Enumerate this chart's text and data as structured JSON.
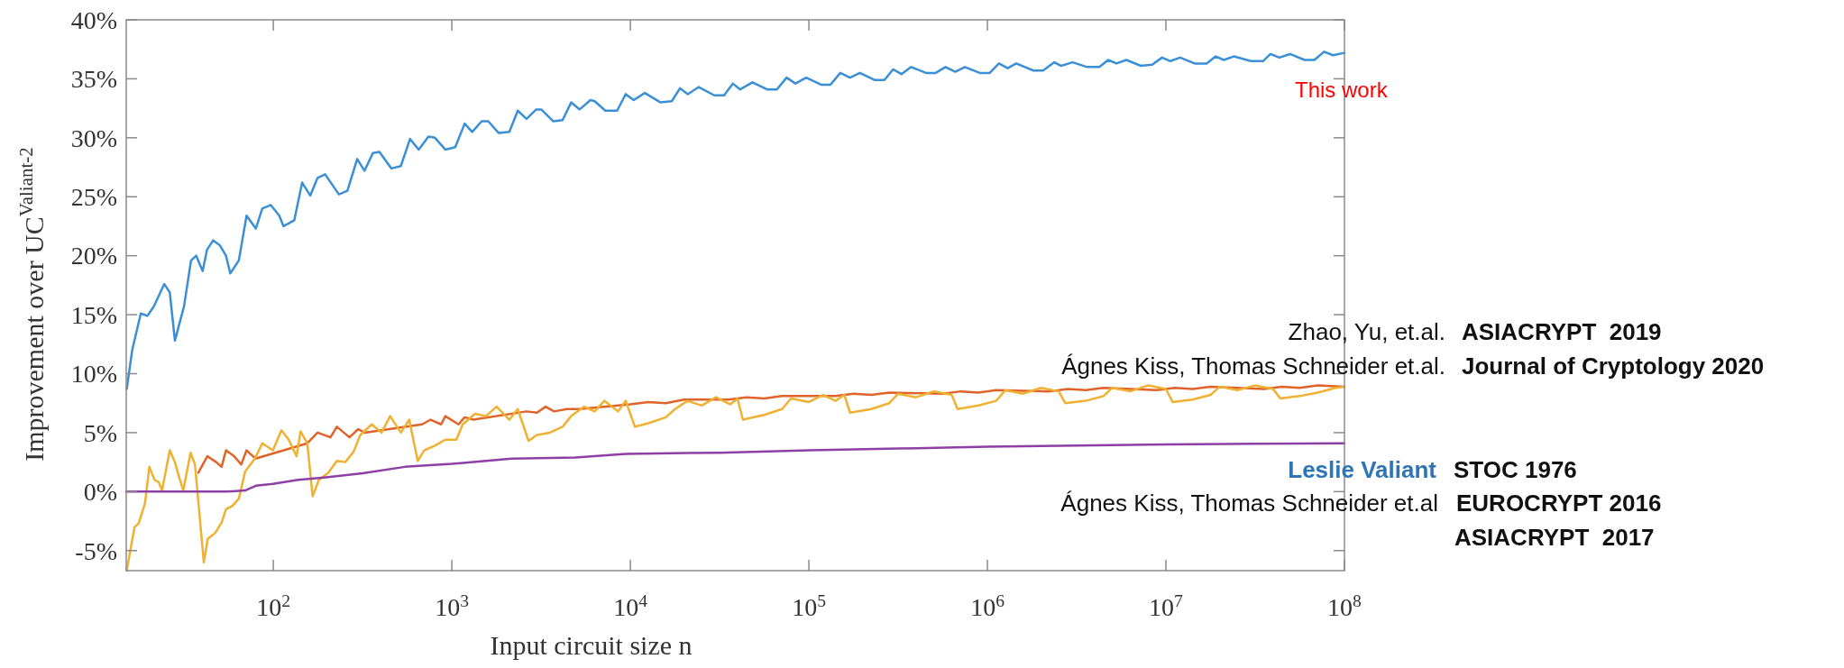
{
  "chart_data": {
    "type": "line",
    "xlabel": "Input circuit size n",
    "ylabel": "Improvement over UC$^{Valiant-2}$",
    "log": "x",
    "xlim": [
      15,
      100000000
    ],
    "ylim": [
      -6.7,
      40
    ],
    "xticks": [
      {
        "value": 100,
        "label": "10$^{2}$"
      },
      {
        "value": 1000,
        "label": "10$^{3}$"
      },
      {
        "value": 10000,
        "label": "10$^{4}$"
      },
      {
        "value": 100000,
        "label": "10$^{5}$"
      },
      {
        "value": 1000000,
        "label": "10$^{6}$"
      },
      {
        "value": 10000000,
        "label": "10$^{7}$"
      },
      {
        "value": 100000000,
        "label": "10$^{8}$"
      }
    ],
    "yticks": [
      {
        "value": -5,
        "label": "-5%"
      },
      {
        "value": 0,
        "label": "0%"
      },
      {
        "value": 5,
        "label": "5%"
      },
      {
        "value": 10,
        "label": "10%"
      },
      {
        "value": 15,
        "label": "15%"
      },
      {
        "value": 20,
        "label": "20%"
      },
      {
        "value": 25,
        "label": "25%"
      },
      {
        "value": 30,
        "label": "30%"
      },
      {
        "value": 35,
        "label": "35%"
      },
      {
        "value": 40,
        "label": "40%"
      }
    ],
    "series": [
      {
        "color": "#3a8fd6",
        "x": [
          15.1,
          16.2,
          18.1,
          19.7,
          21.4,
          24.5,
          26.3,
          28.1,
          31.6,
          34.6,
          37,
          40.2,
          42.5,
          46,
          50.1,
          54.3,
          57.4,
          64.1,
          70.8,
          79.8,
          86.7,
          96.8,
          108,
          114,
          131,
          145,
          161,
          177,
          195,
          233,
          260,
          295,
          324,
          361,
          393,
          458,
          518,
          583,
          652,
          740,
          804,
          920,
          1045,
          1180,
          1300,
          1470,
          1600,
          1830,
          2100,
          2340,
          2620,
          2970,
          3170,
          3700,
          4170,
          4660,
          5200,
          5970,
          6310,
          7240,
          8430,
          9420,
          10450,
          12050,
          14760,
          17060,
          18970,
          20990,
          24150,
          29510,
          33500,
          37500,
          41200,
          48300,
          58300,
          66200,
          75000,
          84100,
          96600,
          117000,
          132000,
          150000,
          170000,
          193000,
          233000,
          265000,
          296000,
          330000,
          374000,
          453000,
          513000,
          582000,
          661000,
          748000,
          906000,
          1030000,
          1160000,
          1300000,
          1450000,
          1810000,
          2050000,
          2370000,
          2590000,
          3000000,
          3620000,
          4240000,
          4750000,
          5280000,
          6000000,
          7240000,
          8380000,
          9510000,
          10600000,
          12000000,
          14500000,
          16900000,
          19000000,
          21100000,
          24000000,
          29900000,
          35000000,
          38500000,
          43200000,
          49500000,
          59800000,
          67900000,
          76900000,
          86300000,
          100000000
        ],
        "values": [
          8.7,
          12,
          15.1,
          14.9,
          15.7,
          17.6,
          16.9,
          12.8,
          15.7,
          19.6,
          20,
          18.7,
          20.5,
          21.3,
          20.9,
          20,
          18.5,
          19.6,
          23.4,
          22.3,
          24,
          24.3,
          23.4,
          22.5,
          23,
          26.2,
          25.1,
          26.6,
          26.9,
          25.2,
          25.5,
          28.2,
          27.2,
          28.7,
          28.8,
          27.4,
          27.6,
          29.9,
          29,
          30.1,
          30,
          29,
          29.2,
          31.2,
          30.5,
          31.4,
          31.4,
          30.4,
          30.5,
          32.3,
          31.6,
          32.4,
          32.4,
          31.4,
          31.5,
          33,
          32.4,
          33.2,
          33.1,
          32.3,
          32.3,
          33.7,
          33.2,
          33.8,
          33,
          33.1,
          34.2,
          33.7,
          34.3,
          33.6,
          33.6,
          34.6,
          34.1,
          34.7,
          34.1,
          34.1,
          35.1,
          34.6,
          35.1,
          34.5,
          34.5,
          35.5,
          35.1,
          35.5,
          34.9,
          34.9,
          35.8,
          35.4,
          36,
          35.5,
          35.5,
          36,
          35.6,
          36,
          35.5,
          35.5,
          36.3,
          35.9,
          36.3,
          35.7,
          35.7,
          36.4,
          36.1,
          36.4,
          36,
          36,
          36.6,
          36.3,
          36.6,
          36.1,
          36.2,
          36.8,
          36.5,
          36.8,
          36.3,
          36.3,
          36.9,
          36.6,
          36.9,
          36.5,
          36.5,
          37.1,
          36.8,
          37.1,
          36.6,
          36.6,
          37.3,
          37,
          37.2
        ]
      },
      {
        "color": "#e0632a",
        "x": [
          38,
          42.7,
          47.9,
          51.3,
          54.3,
          60.3,
          66.1,
          70.8,
          79.4,
          155,
          177,
          209,
          227,
          267,
          299,
          324,
          681,
          760,
          871,
          920,
          1090,
          1180,
          1320,
          2620,
          3000,
          3350,
          3740,
          4410,
          5200,
          10000,
          12600,
          15800,
          20000,
          35500,
          44700,
          56200,
          70800,
          141000,
          178000,
          224000,
          282000,
          562000,
          708000,
          891000,
          1120000,
          2240000,
          2820000,
          3550000,
          4470000,
          8910000,
          11200000,
          14100000,
          17800000,
          35500000,
          44700000,
          56200000,
          70800000,
          100000000
        ],
        "values": [
          1.6,
          3,
          2.5,
          2.1,
          3.5,
          3,
          2.3,
          3.5,
          2.8,
          4.1,
          5,
          4.6,
          5.5,
          4.6,
          5.3,
          5,
          5.7,
          6.1,
          5.7,
          6.4,
          5.7,
          6.3,
          6.1,
          6.8,
          6.7,
          7.2,
          6.8,
          7,
          7,
          7.4,
          7.6,
          7.5,
          7.8,
          7.8,
          8,
          7.9,
          8.1,
          8.1,
          8.3,
          8.2,
          8.4,
          8.3,
          8.5,
          8.4,
          8.6,
          8.5,
          8.7,
          8.6,
          8.8,
          8.6,
          8.8,
          8.7,
          8.9,
          8.7,
          8.9,
          8.8,
          9,
          8.9
        ]
      },
      {
        "color": "#f0b030",
        "x": [
          15.1,
          15.8,
          16.7,
          17.6,
          19.1,
          20.2,
          21.6,
          22.8,
          23.8,
          26.3,
          28.1,
          29.7,
          31.3,
          34.4,
          36.4,
          40.8,
          42.9,
          47.3,
          51.4,
          54.3,
          59,
          64.1,
          69.5,
          78.9,
          86.7,
          99.5,
          111,
          122,
          135,
          142,
          155,
          166,
          180,
          203,
          227,
          253,
          282,
          307,
          356,
          404,
          451,
          518,
          577,
          644,
          700,
          804,
          920,
          1060,
          1150,
          1350,
          1550,
          1780,
          2100,
          2340,
          2690,
          3000,
          3540,
          4170,
          4660,
          5500,
          6310,
          7150,
          8530,
          9420,
          10600,
          12600,
          15800,
          17800,
          20900,
          25100,
          30200,
          36300,
          39800,
          42700,
          56200,
          70800,
          79400,
          100000,
          120000,
          141000,
          158000,
          170000,
          224000,
          282000,
          316000,
          398000,
          501000,
          631000,
          681000,
          891000,
          1120000,
          1260000,
          1580000,
          2000000,
          2510000,
          2730000,
          3550000,
          4470000,
          5010000,
          6310000,
          7940000,
          10000000,
          10900000,
          14100000,
          17800000,
          20000000,
          25100000,
          31600000,
          39800000,
          43700000,
          56200000,
          70800000,
          89100000,
          100000000
        ],
        "values": [
          -6.7,
          -5,
          -3,
          -2.7,
          -1,
          2.1,
          1,
          0.8,
          0.1,
          3.5,
          2.5,
          1.2,
          0.1,
          3.3,
          2.3,
          -6,
          -4,
          -3.5,
          -2.6,
          -1.5,
          -1.2,
          -0.6,
          1.7,
          2.8,
          4.1,
          3.5,
          5.2,
          4.4,
          3,
          5.1,
          4.1,
          -0.4,
          1,
          1.6,
          2.6,
          2.5,
          3.4,
          4.8,
          5.7,
          5,
          6.4,
          5,
          6.1,
          2.6,
          3.5,
          3.9,
          4.4,
          4.4,
          5.7,
          6.6,
          6.4,
          7.2,
          6.1,
          7,
          4.3,
          4.8,
          5,
          5.5,
          6.4,
          7.2,
          6.8,
          7.7,
          6.8,
          7.7,
          5.5,
          5.8,
          6.3,
          7,
          7.7,
          7.3,
          8,
          7.4,
          7.9,
          6.1,
          6.5,
          7,
          7.9,
          7.6,
          8.2,
          7.7,
          8.2,
          6.7,
          7,
          7.5,
          8.3,
          8,
          8.5,
          8.2,
          7,
          7.3,
          7.7,
          8.6,
          8.3,
          8.8,
          8.5,
          7.5,
          7.7,
          8.1,
          8.8,
          8.5,
          9,
          8.7,
          7.6,
          7.8,
          8.2,
          8.9,
          8.6,
          9,
          8.7,
          7.9,
          8.1,
          8.4,
          8.8,
          8.9
        ]
      },
      {
        "color": "#8e3fa6",
        "x": [
          15,
          54.3,
          69.5,
          79.8,
          99.5,
          138,
          192,
          316,
          546,
          1000,
          2160,
          4920,
          9420,
          31600,
          100000,
          316000,
          1000000,
          3160000,
          10000000,
          31600000,
          100000000
        ],
        "values": [
          0,
          0,
          0.1,
          0.5,
          0.65,
          1,
          1.2,
          1.55,
          2.1,
          2.35,
          2.8,
          2.9,
          3.2,
          3.3,
          3.5,
          3.65,
          3.8,
          3.9,
          4,
          4.05,
          4.1
        ]
      }
    ],
    "annotations": [
      "This work",
      "Zhao, Yu, et.al.",
      "ASIACRYPT  2019",
      "Ágnes Kiss, Thomas Schneider et.al.",
      "Journal of Cryptology 2020",
      "Leslie Valiant",
      "STOC 1976",
      "Ágnes Kiss, Thomas Schneider et.al",
      "EUROCRYPT 2016",
      "ASIACRYPT  2017"
    ]
  }
}
